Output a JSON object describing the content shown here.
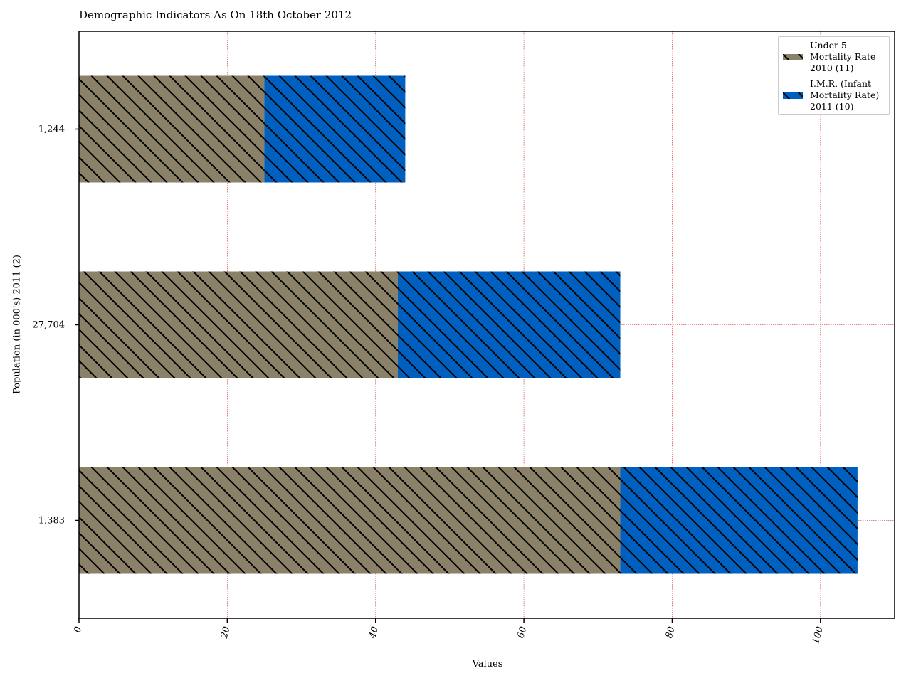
{
  "chart_data": {
    "type": "bar",
    "orientation": "horizontal",
    "stacked": true,
    "title": "Demographic Indicators As On 18th October 2012",
    "xlabel": "Values",
    "ylabel": "Population (in 000's) 2011 (2)",
    "categories": [
      "1,383",
      "27,704",
      "1,244"
    ],
    "series": [
      {
        "name": "Under 5\nMortality Rate\n2010 (11)",
        "color": "#8b8068",
        "hatch": "diagonal",
        "values": [
          73,
          43,
          25
        ]
      },
      {
        "name": "I.M.R. (Infant\nMortality Rate)\n2011 (10)",
        "color": "#0060bf",
        "hatch": "diagonal",
        "values": [
          32,
          30,
          19
        ]
      }
    ],
    "xlim": [
      0,
      110
    ],
    "xticks": [
      "0",
      "20",
      "40",
      "60",
      "80",
      "100"
    ],
    "grid": true,
    "grid_color": "#e06060",
    "legend_position": "top-right"
  }
}
